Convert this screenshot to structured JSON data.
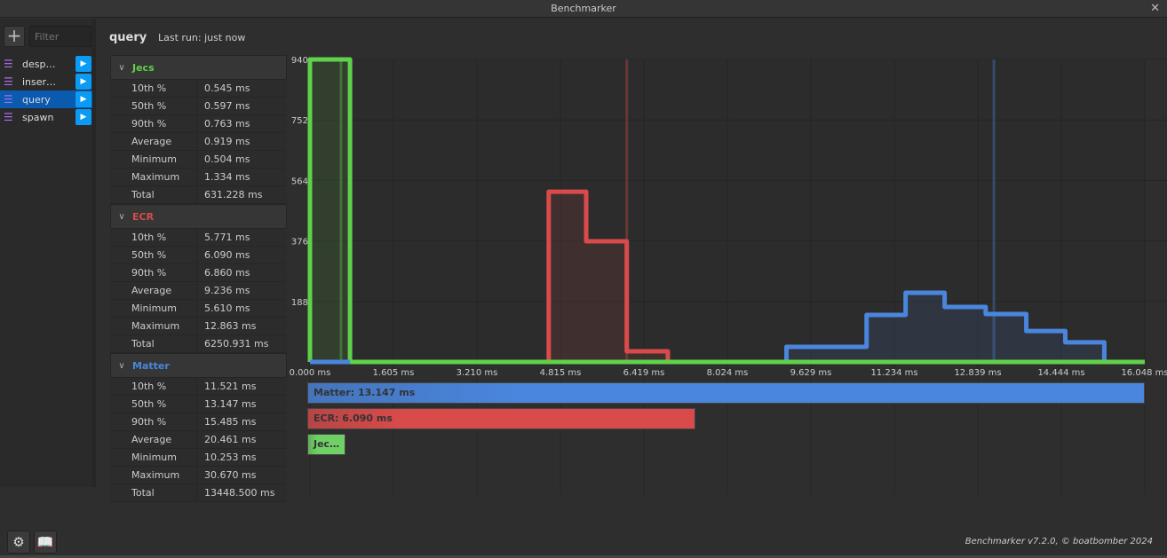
{
  "window": {
    "title": "Benchmarker",
    "close_icon": "close-icon"
  },
  "sidebar": {
    "add_icon": "plus-icon",
    "filter_placeholder": "Filter",
    "filter_value": "",
    "items": [
      {
        "label": "desp…",
        "selected": false
      },
      {
        "label": "inser…",
        "selected": false
      },
      {
        "label": "query",
        "selected": true
      },
      {
        "label": "spawn",
        "selected": false
      }
    ]
  },
  "header": {
    "title": "query",
    "last_run": "Last run: just now"
  },
  "stats": [
    {
      "name": "Jecs",
      "color": "#5fd14a",
      "rows": [
        [
          "10th %",
          "0.545 ms"
        ],
        [
          "50th %",
          "0.597 ms"
        ],
        [
          "90th %",
          "0.763 ms"
        ],
        [
          "Average",
          "0.919 ms"
        ],
        [
          "Minimum",
          "0.504 ms"
        ],
        [
          "Maximum",
          "1.334 ms"
        ],
        [
          "Total",
          "631.228 ms"
        ]
      ]
    },
    {
      "name": "ECR",
      "color": "#d94b4b",
      "rows": [
        [
          "10th %",
          "5.771 ms"
        ],
        [
          "50th %",
          "6.090 ms"
        ],
        [
          "90th %",
          "6.860 ms"
        ],
        [
          "Average",
          "9.236 ms"
        ],
        [
          "Minimum",
          "5.610 ms"
        ],
        [
          "Maximum",
          "12.863 ms"
        ],
        [
          "Total",
          "6250.931 ms"
        ]
      ]
    },
    {
      "name": "Matter",
      "color": "#4a86de",
      "rows": [
        [
          "10th %",
          "11.521 ms"
        ],
        [
          "50th %",
          "13.147 ms"
        ],
        [
          "90th %",
          "15.485 ms"
        ],
        [
          "Average",
          "20.461 ms"
        ],
        [
          "Minimum",
          "10.253 ms"
        ],
        [
          "Maximum",
          "30.670 ms"
        ],
        [
          "Total",
          "13448.500 ms"
        ]
      ]
    }
  ],
  "chart_data": {
    "type": "histogram",
    "xlim": [
      0,
      16.048
    ],
    "ylim": [
      0,
      940
    ],
    "x_ticks": [
      "0.000 ms",
      "1.605 ms",
      "3.210 ms",
      "4.815 ms",
      "6.419 ms",
      "8.024 ms",
      "9.629 ms",
      "11.234 ms",
      "12.839 ms",
      "14.444 ms",
      "16.048 ms"
    ],
    "y_ticks": [
      "940",
      "752",
      "564",
      "376",
      "188"
    ],
    "grid": true,
    "series": [
      {
        "name": "Jecs",
        "color": "#5fd14a",
        "median": 0.597,
        "edges": [
          0,
          0.77
        ],
        "counts": [
          940
        ]
      },
      {
        "name": "ECR",
        "color": "#d94b4b",
        "median": 6.09,
        "edges": [
          4.59,
          5.31,
          6.09,
          6.88
        ],
        "counts": [
          529,
          375,
          33
        ]
      },
      {
        "name": "Matter",
        "color": "#4a86de",
        "median": 13.147,
        "edges": [
          9.16,
          10.7,
          11.45,
          12.2,
          12.99,
          13.77,
          14.52,
          15.27
        ],
        "counts": [
          47,
          146,
          215,
          171,
          149,
          96,
          61
        ]
      }
    ],
    "median_bars": [
      {
        "label": "Matter: 13.147 ms",
        "value": 13.147,
        "color": "#4a86de"
      },
      {
        "label": "ECR: 6.090 ms",
        "value": 6.09,
        "color": "#d94b4b"
      },
      {
        "label": "Jec…",
        "value": 0.597,
        "color": "#6fd165"
      }
    ]
  },
  "footer": {
    "credit": "Benchmarker v7.2.0, © boatbomber 2024",
    "settings_icon": "gear-icon",
    "docs_icon": "book-icon"
  }
}
